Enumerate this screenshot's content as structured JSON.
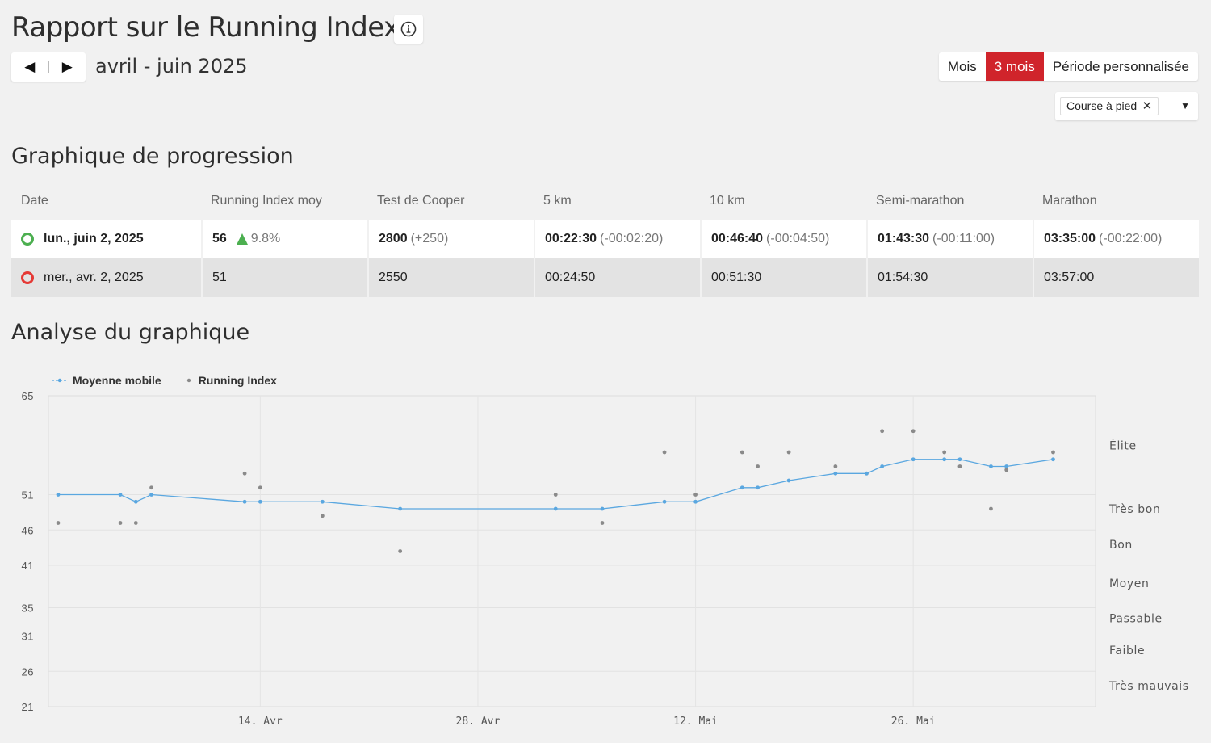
{
  "header": {
    "title": "Rapport sur le Running Index",
    "info_icon": "info-circle-icon",
    "date_range": "avril - juin 2025",
    "prev_symbol": "◀",
    "next_symbol": "▶",
    "periods": [
      {
        "label": "Mois",
        "active": false
      },
      {
        "label": "3 mois",
        "active": true
      },
      {
        "label": "Période personnalisée",
        "active": false
      }
    ],
    "sport_filter": {
      "chip": "Course à pied",
      "remove_symbol": "✕",
      "caret": "▼"
    }
  },
  "colors": {
    "accent": "#d0242b",
    "latest": "#4caf50",
    "previous": "#e53935",
    "moving_avg": "#5aa7e0",
    "points": "#8a8a8a"
  },
  "progression": {
    "title": "Graphique de progression",
    "columns": [
      "Date",
      "Running Index moy",
      "Test de Cooper",
      "5 km",
      "10 km",
      "Semi-marathon",
      "Marathon"
    ],
    "rows": [
      {
        "date": "lun., juin 2, 2025",
        "index": "56",
        "index_trend": "9.8%",
        "cooper": "2800",
        "cooper_delta": "(+250)",
        "t5k": "00:22:30",
        "t5k_delta": "(-00:02:20)",
        "t10k": "00:46:40",
        "t10k_delta": "(-00:04:50)",
        "half": "01:43:30",
        "half_delta": "(-00:11:00)",
        "marathon": "03:35:00",
        "marathon_delta": "(-00:22:00)"
      },
      {
        "date": "mer., avr. 2, 2025",
        "index": "51",
        "cooper": "2550",
        "t5k": "00:24:50",
        "t10k": "00:51:30",
        "half": "01:54:30",
        "marathon": "03:57:00"
      }
    ]
  },
  "analysis": {
    "title": "Analyse du graphique"
  },
  "chart_data": {
    "type": "scatter",
    "x_axis": "date",
    "x_range": [
      "2025-04-01",
      "2025-06-06"
    ],
    "x_ticks": [
      {
        "date": "2025-04-14",
        "label": "14. Avr"
      },
      {
        "date": "2025-04-28",
        "label": "28. Avr"
      },
      {
        "date": "2025-05-12",
        "label": "12. Mai"
      },
      {
        "date": "2025-05-26",
        "label": "26. Mai"
      }
    ],
    "y_ticks": [
      21,
      26,
      31,
      35,
      41,
      46,
      51,
      65
    ],
    "ylim": [
      21,
      65
    ],
    "grid": true,
    "legend_position": "top-left",
    "category_bands": [
      {
        "label": "Élite",
        "value": 58
      },
      {
        "label": "Très bon",
        "value": 49
      },
      {
        "label": "Bon",
        "value": 44
      },
      {
        "label": "Moyen",
        "value": 38.5
      },
      {
        "label": "Passable",
        "value": 33.5
      },
      {
        "label": "Faible",
        "value": 29
      },
      {
        "label": "Très mauvais",
        "value": 24
      }
    ],
    "series": [
      {
        "name": "Moyenne mobile",
        "style": "line-with-markers",
        "points": [
          [
            "2025-04-01",
            51
          ],
          [
            "2025-04-05",
            51
          ],
          [
            "2025-04-06",
            50
          ],
          [
            "2025-04-07",
            51
          ],
          [
            "2025-04-13",
            50
          ],
          [
            "2025-04-14",
            50
          ],
          [
            "2025-04-18",
            50
          ],
          [
            "2025-04-23",
            49
          ],
          [
            "2025-05-03",
            49
          ],
          [
            "2025-05-06",
            49
          ],
          [
            "2025-05-10",
            50
          ],
          [
            "2025-05-12",
            50
          ],
          [
            "2025-05-15",
            52
          ],
          [
            "2025-05-16",
            52
          ],
          [
            "2025-05-18",
            53
          ],
          [
            "2025-05-21",
            54
          ],
          [
            "2025-05-23",
            54
          ],
          [
            "2025-05-24",
            55
          ],
          [
            "2025-05-26",
            56
          ],
          [
            "2025-05-28",
            56
          ],
          [
            "2025-05-29",
            56
          ],
          [
            "2025-05-31",
            55
          ],
          [
            "2025-06-01",
            55
          ],
          [
            "2025-06-04",
            56
          ]
        ]
      },
      {
        "name": "Running Index",
        "style": "markers",
        "points": [
          [
            "2025-04-01",
            47
          ],
          [
            "2025-04-05",
            47
          ],
          [
            "2025-04-06",
            47
          ],
          [
            "2025-04-07",
            52
          ],
          [
            "2025-04-13",
            54
          ],
          [
            "2025-04-14",
            52
          ],
          [
            "2025-04-18",
            48
          ],
          [
            "2025-04-23",
            43
          ],
          [
            "2025-05-03",
            51
          ],
          [
            "2025-05-06",
            47
          ],
          [
            "2025-05-10",
            57
          ],
          [
            "2025-05-12",
            51
          ],
          [
            "2025-05-15",
            57
          ],
          [
            "2025-05-16",
            55
          ],
          [
            "2025-05-18",
            57
          ],
          [
            "2025-05-21",
            55
          ],
          [
            "2025-05-23",
            54
          ],
          [
            "2025-05-24",
            60
          ],
          [
            "2025-05-26",
            60
          ],
          [
            "2025-05-28",
            57
          ],
          [
            "2025-05-29",
            55
          ],
          [
            "2025-05-31",
            49
          ],
          [
            "2025-06-01",
            54.5
          ],
          [
            "2025-06-04",
            57
          ]
        ]
      }
    ]
  }
}
